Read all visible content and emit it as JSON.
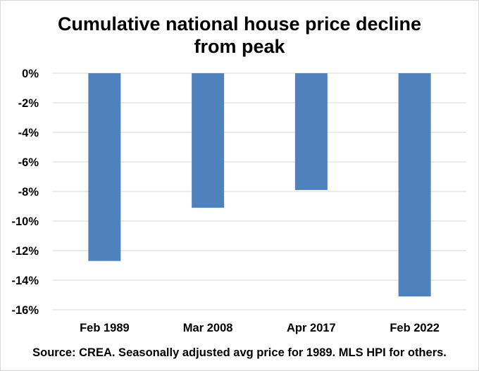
{
  "chart_data": {
    "type": "bar",
    "title_lines": [
      "Cumulative national house price decline",
      "from peak"
    ],
    "categories": [
      "Feb 1989",
      "Mar 2008",
      "Apr 2017",
      "Feb 2022"
    ],
    "values": [
      -12.7,
      -9.1,
      -7.9,
      -15.1
    ],
    "ylim": [
      -16,
      0
    ],
    "yticks": [
      0,
      -2,
      -4,
      -6,
      -8,
      -10,
      -12,
      -14,
      -16
    ],
    "ytick_labels": [
      "0%",
      "-2%",
      "-4%",
      "-6%",
      "-8%",
      "-10%",
      "-12%",
      "-14%",
      "-16%"
    ],
    "xlabel": "",
    "ylabel": "",
    "grid": true,
    "bar_color": "#4f81bd",
    "grid_color": "#d9d9d9",
    "source": "Source:  CREA.  Seasonally adjusted avg price for 1989. MLS HPI for others."
  }
}
